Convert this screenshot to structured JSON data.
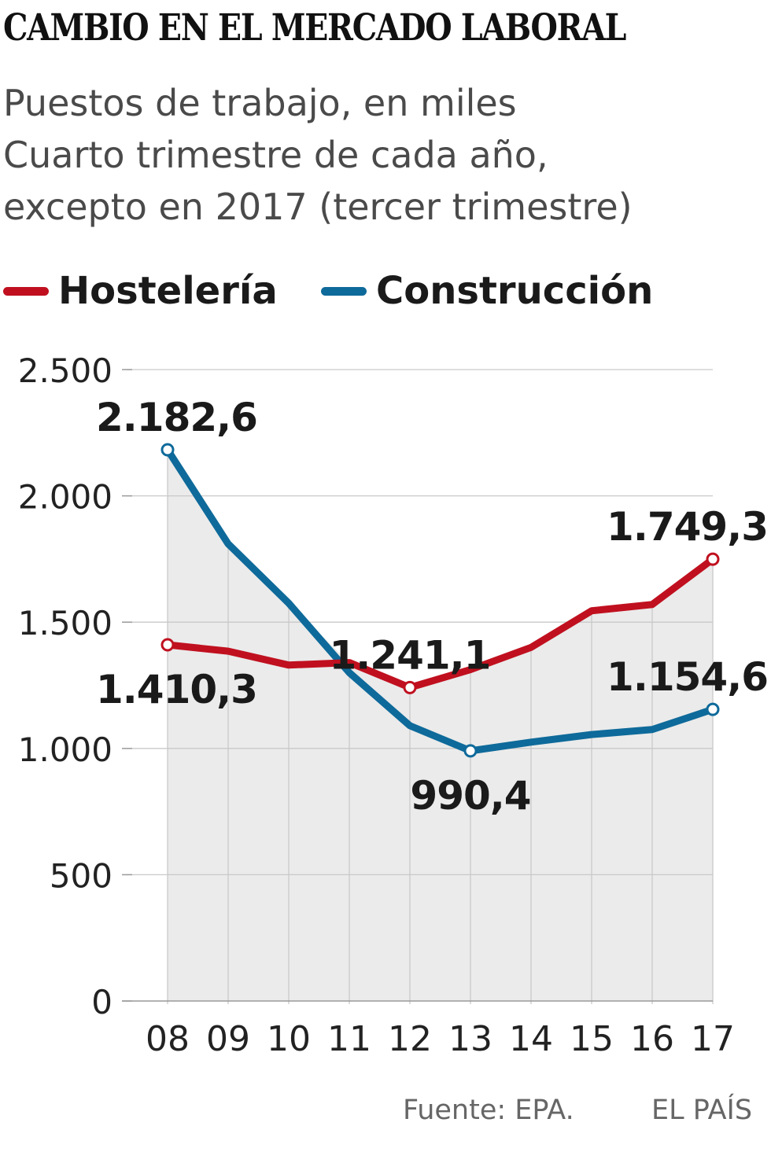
{
  "title": "CAMBIO EN EL MERCADO LABORAL",
  "subtitle_lines": [
    "Puestos de trabajo, en miles",
    "Cuarto trimestre de cada año,",
    "excepto en 2017 (tercer trimestre)"
  ],
  "source": "Fuente: EPA.",
  "brand": "EL PAÍS",
  "colors": {
    "hosteleria": "#c0101f",
    "construccion": "#0e6a9a",
    "area_fill": "#ebebeb",
    "grid": "#c9c9c9"
  },
  "chart_data": {
    "type": "line",
    "x": [
      "08",
      "09",
      "10",
      "11",
      "12",
      "13",
      "14",
      "15",
      "16",
      "17"
    ],
    "ylim": [
      0,
      2500
    ],
    "yticks": [
      0,
      500,
      1000,
      1500,
      2000,
      2500
    ],
    "ytick_labels": [
      "0",
      "500",
      "1.000",
      "1.500",
      "2.000",
      "2.500"
    ],
    "grid": true,
    "legend_position": "top",
    "series": [
      {
        "name": "Hostelería",
        "color": "#c0101f",
        "values": [
          1410.3,
          1385,
          1330,
          1340,
          1241.1,
          1312,
          1400,
          1545,
          1570,
          1749.3
        ],
        "labels": [
          {
            "index": 0,
            "text": "1.410,3"
          },
          {
            "index": 4,
            "text": "1.241,1"
          },
          {
            "index": 9,
            "text": "1.749,3"
          }
        ]
      },
      {
        "name": "Construcción",
        "color": "#0e6a9a",
        "values": [
          2182.6,
          1810,
          1575,
          1300,
          1090,
          990.4,
          1025,
          1055,
          1075,
          1154.6
        ],
        "labels": [
          {
            "index": 0,
            "text": "2.182,6"
          },
          {
            "index": 5,
            "text": "990,4"
          },
          {
            "index": 9,
            "text": "1.154,6"
          }
        ]
      }
    ]
  }
}
